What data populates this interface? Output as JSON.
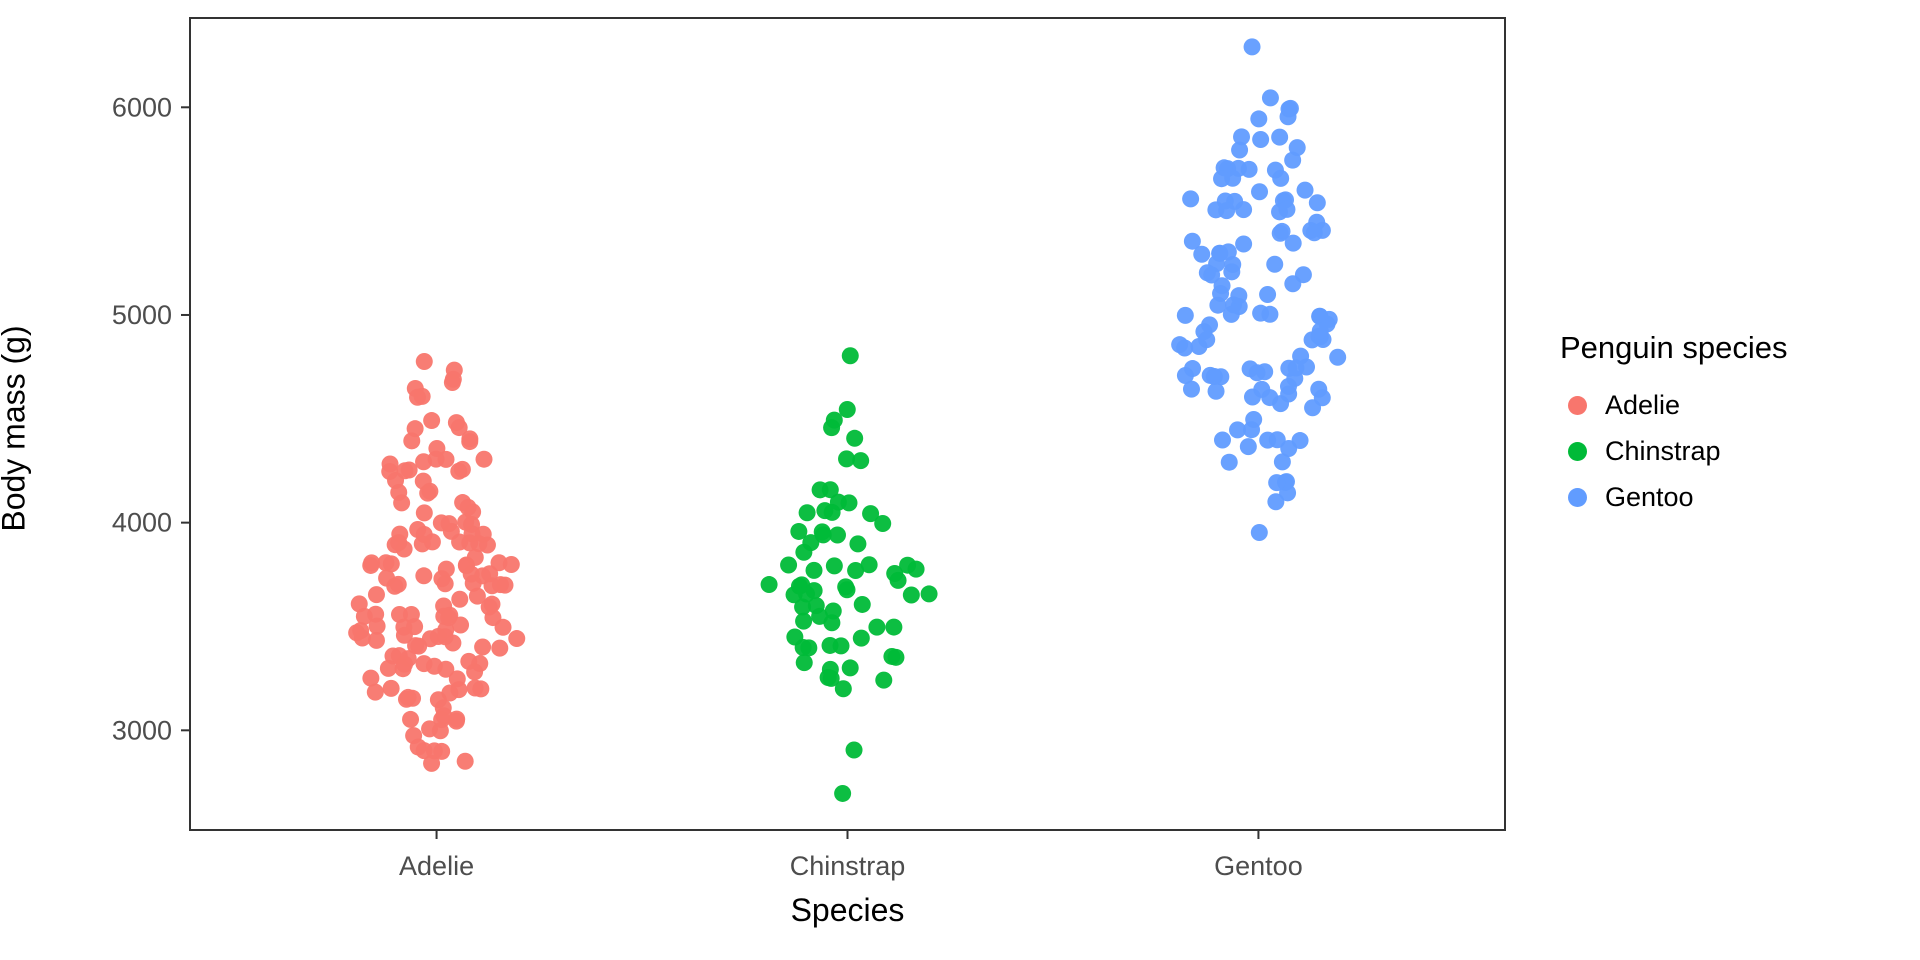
{
  "chart_data": {
    "type": "scatter",
    "variant": "beeswarm-jitter",
    "title": "",
    "xlabel": "Species",
    "ylabel": "Body mass (g)",
    "legend_title": "Penguin species",
    "legend_position": "right",
    "grid": false,
    "panel_border_color": "#333333",
    "categories": [
      "Adelie",
      "Chinstrap",
      "Gentoo"
    ],
    "yticks": [
      3000,
      4000,
      5000,
      6000
    ],
    "ylim": [
      2520,
      6430
    ],
    "series": [
      {
        "name": "Adelie",
        "color": "#F8766D",
        "values": [
          3750,
          3800,
          3250,
          3450,
          3650,
          3625,
          4675,
          3475,
          4250,
          3300,
          3700,
          3200,
          3800,
          4400,
          3700,
          3450,
          4500,
          3325,
          4200,
          3400,
          3600,
          3800,
          3950,
          3800,
          3800,
          3550,
          3200,
          3150,
          3950,
          3250,
          3900,
          3300,
          3900,
          3325,
          4150,
          3950,
          3550,
          3300,
          4650,
          3150,
          3900,
          3100,
          4400,
          3000,
          4600,
          3425,
          2975,
          3450,
          4150,
          3500,
          4300,
          3450,
          4050,
          2900,
          3700,
          3550,
          3800,
          2850,
          3750,
          3150,
          4400,
          3600,
          4050,
          2850,
          3950,
          3350,
          4100,
          3050,
          4450,
          3600,
          3900,
          3550,
          4150,
          3700,
          4250,
          3700,
          3900,
          3550,
          4000,
          3200,
          4700,
          3800,
          4200,
          3350,
          3550,
          3800,
          3500,
          3950,
          3600,
          3550,
          4300,
          3400,
          4450,
          3300,
          4300,
          3700,
          4350,
          2900,
          4100,
          3725,
          4725,
          3075,
          4250,
          2925,
          3550,
          3750,
          3900,
          3175,
          4775,
          3825,
          4600,
          3200,
          4275,
          3900,
          4075,
          2900,
          3775,
          3350,
          3325,
          3150,
          3500,
          3450,
          3875,
          3050,
          4000,
          3275,
          4300,
          3050,
          4000,
          3325,
          3500,
          3500,
          4475,
          3425,
          3900,
          3175,
          3975,
          3400,
          4250,
          3400,
          3475,
          3050,
          3725,
          3000,
          3650,
          4250,
          3475,
          3450,
          3750,
          3700,
          4000
        ]
      },
      {
        "name": "Chinstrap",
        "color": "#00BA38",
        "values": [
          3500,
          3900,
          3650,
          3525,
          3725,
          3950,
          3250,
          3750,
          4150,
          3700,
          3800,
          3775,
          3700,
          4050,
          3575,
          4050,
          3300,
          3700,
          3450,
          4400,
          3600,
          3400,
          2900,
          3800,
          3300,
          4150,
          3400,
          3800,
          3700,
          4550,
          3200,
          4300,
          3350,
          4100,
          3600,
          3900,
          3850,
          4800,
          2700,
          4500,
          3950,
          3650,
          3550,
          3500,
          3675,
          4450,
          3400,
          4300,
          3250,
          3675,
          3325,
          3950,
          3600,
          4050,
          3350,
          3450,
          3250,
          4050,
          3800,
          3525,
          3950,
          3650,
          3650,
          4000,
          3400,
          3775,
          4100,
          3775
        ]
      },
      {
        "name": "Gentoo",
        "color": "#619CFF",
        "values": [
          4500,
          5700,
          4450,
          5700,
          5400,
          4550,
          4800,
          5200,
          4400,
          5150,
          4650,
          5550,
          4650,
          5850,
          4200,
          5850,
          4150,
          6300,
          4800,
          5350,
          5700,
          5000,
          4400,
          5050,
          5000,
          5100,
          4100,
          5650,
          4600,
          5550,
          5250,
          4700,
          5050,
          6050,
          5150,
          5400,
          4950,
          5250,
          4350,
          5350,
          3950,
          5700,
          4300,
          4750,
          5550,
          4900,
          4200,
          5400,
          5100,
          5300,
          4850,
          5300,
          4400,
          5000,
          4900,
          5050,
          4300,
          5000,
          4450,
          5550,
          4200,
          5300,
          4400,
          5650,
          4700,
          5700,
          4650,
          5800,
          4700,
          5550,
          4750,
          5000,
          5100,
          5200,
          4700,
          5800,
          4600,
          6000,
          4750,
          5950,
          4625,
          5450,
          4725,
          5350,
          4750,
          5600,
          4600,
          5300,
          4875,
          5550,
          4950,
          5400,
          4750,
          5650,
          4850,
          5200,
          4925,
          4875,
          4625,
          5250,
          4850,
          5600,
          4975,
          5500,
          4725,
          5500,
          4700,
          5500,
          4575,
          5500,
          5000,
          5950,
          4650,
          5500,
          4375,
          5850,
          4875,
          6000,
          4925,
          5750,
          5200,
          5400
        ]
      }
    ]
  }
}
